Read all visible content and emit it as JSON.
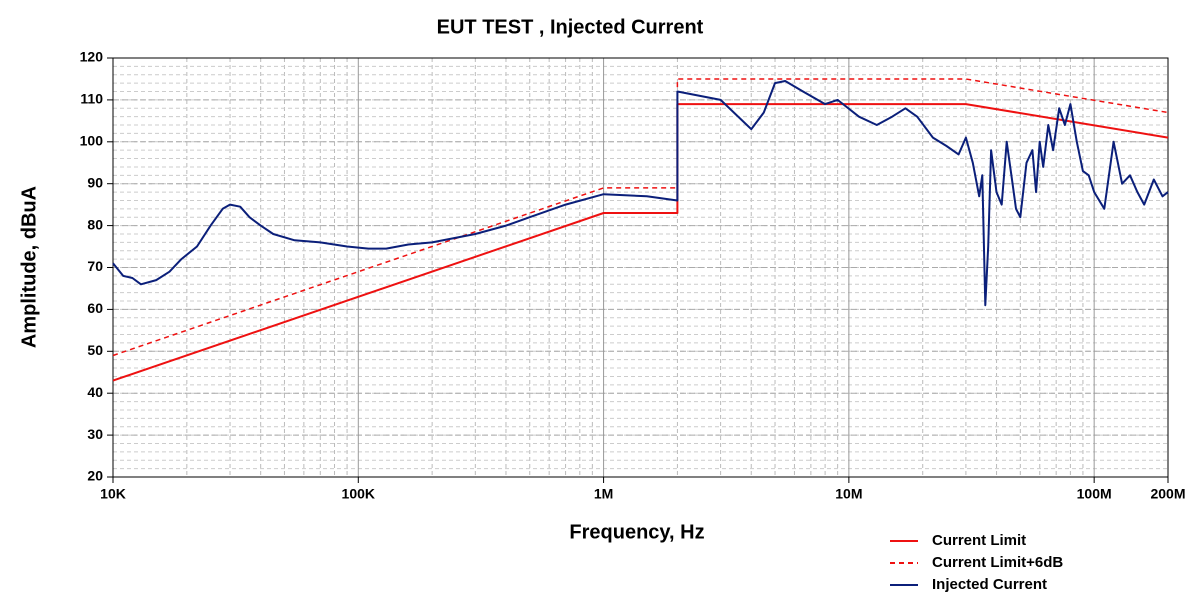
{
  "chart_data": {
    "type": "line",
    "title": "EUT TEST , Injected Current",
    "x_label": "Frequency, Hz",
    "y_label": "Amplitude, dBuA",
    "x_scale": "log",
    "xlim": [
      10000,
      200000000
    ],
    "xticks": [
      {
        "value": 10000,
        "label": "10K"
      },
      {
        "value": 100000,
        "label": "100K"
      },
      {
        "value": 1000000,
        "label": "1M"
      },
      {
        "value": 10000000,
        "label": "10M"
      },
      {
        "value": 100000000,
        "label": "100M"
      },
      {
        "value": 200000000,
        "label": "200M"
      }
    ],
    "ylim": [
      20,
      120
    ],
    "yticks": [
      20,
      30,
      40,
      50,
      60,
      70,
      80,
      90,
      100,
      110,
      120
    ],
    "grid": true,
    "legend": "bottom-right",
    "series": [
      {
        "name": "Current Limit",
        "color": "#ee1111",
        "style": "solid",
        "x": [
          10000,
          1000000,
          2000000,
          2000000,
          30000000,
          200000000
        ],
        "values": [
          43,
          83,
          83,
          109,
          109,
          101
        ]
      },
      {
        "name": "Current Limit+6dB",
        "color": "#ee1111",
        "style": "dashed",
        "x": [
          10000,
          1000000,
          2000000,
          2000000,
          30000000,
          200000000
        ],
        "values": [
          49,
          89,
          89,
          115,
          115,
          107
        ]
      },
      {
        "name": "Injected Current",
        "color": "#0b1f7a",
        "style": "solid",
        "x": [
          10000,
          11000,
          12000,
          13000,
          15000,
          17000,
          19000,
          22000,
          25000,
          28000,
          30000,
          33000,
          36000,
          40000,
          45000,
          55000,
          70000,
          90000,
          110000,
          130000,
          160000,
          200000,
          300000,
          400000,
          500000,
          700000,
          1000000,
          1500000,
          2000000,
          2000000,
          3000000,
          4000000,
          4500000,
          5000000,
          5500000,
          6500000,
          8000000,
          9000000,
          11000000,
          13000000,
          15000000,
          17000000,
          19000000,
          22000000,
          25000000,
          28000000,
          30000000,
          32000000,
          34000000,
          35000000,
          36000000,
          37000000,
          38000000,
          40000000,
          42000000,
          44000000,
          46000000,
          48000000,
          50000000,
          53000000,
          56000000,
          58000000,
          60000000,
          62000000,
          65000000,
          68000000,
          72000000,
          76000000,
          80000000,
          85000000,
          90000000,
          95000000,
          100000000,
          110000000,
          120000000,
          130000000,
          140000000,
          150000000,
          160000000,
          175000000,
          190000000,
          200000000
        ],
        "values": [
          71,
          68,
          67.5,
          66,
          67,
          69,
          72,
          75,
          80,
          84,
          85,
          84.5,
          82,
          80,
          78,
          76.5,
          76,
          75,
          74.5,
          74.5,
          75.5,
          76,
          78,
          80,
          82,
          85,
          87.5,
          87,
          86,
          112,
          110,
          103,
          107,
          114,
          114.5,
          112,
          109,
          110,
          106,
          104,
          106,
          108,
          106,
          101,
          99,
          97,
          101,
          95,
          87,
          92,
          61,
          75,
          98,
          88,
          85,
          100,
          92,
          84,
          82,
          95,
          98,
          88,
          100,
          94,
          104,
          98,
          108,
          104,
          109,
          100,
          93,
          92,
          88,
          84,
          100,
          90,
          92,
          88,
          85,
          91,
          87,
          88
        ]
      }
    ]
  }
}
